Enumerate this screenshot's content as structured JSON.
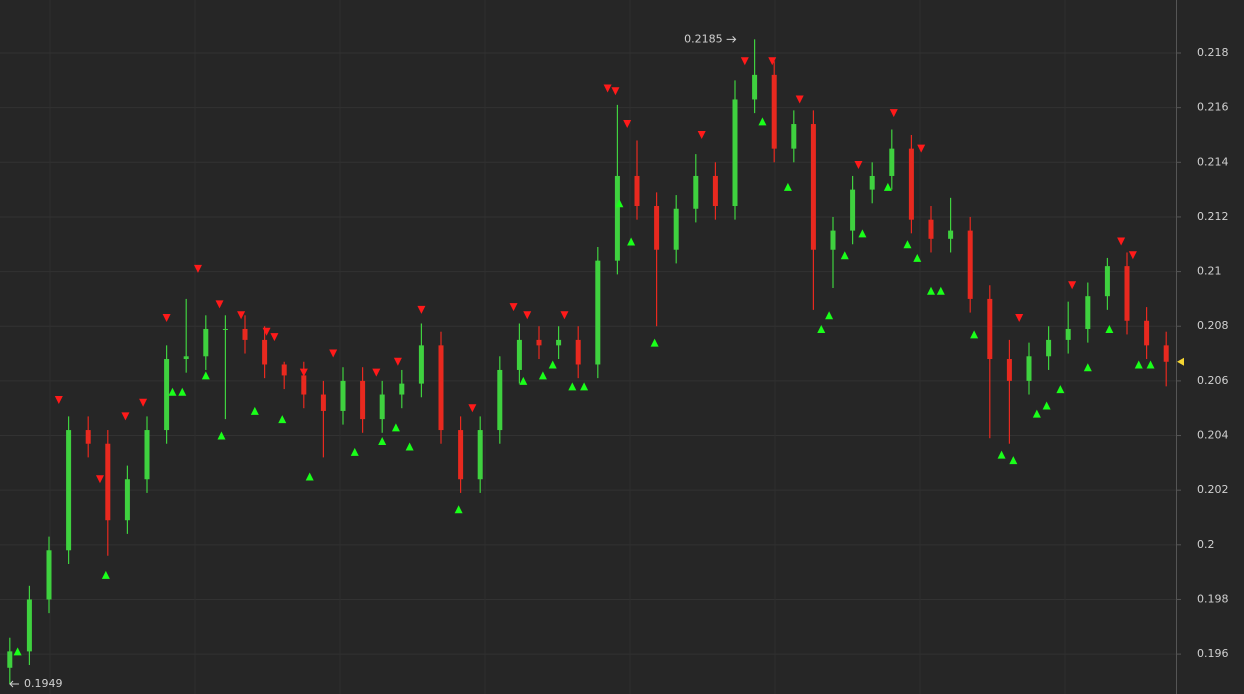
{
  "chart_data": {
    "type": "candlestick",
    "open": [
      0.1955,
      0.1961,
      0.198,
      0.1998,
      0.2042,
      0.2037,
      0.2009,
      0.2024,
      0.2042,
      0.2068,
      0.2069,
      0.2079,
      0.2079,
      0.2075,
      0.2066,
      0.2062,
      0.2055,
      0.2049,
      0.206,
      0.2046,
      0.2055,
      0.2059,
      0.2073,
      0.2042,
      0.2024,
      0.2042,
      0.2064,
      0.2075,
      0.2073,
      0.2075,
      0.2066,
      0.2104,
      0.2135,
      0.2124,
      0.2108,
      0.2123,
      0.2135,
      0.2124,
      0.2163,
      0.2172,
      0.2145,
      0.2154,
      0.2108,
      0.2115,
      0.213,
      0.2135,
      0.2145,
      0.2119,
      0.2112,
      0.2115,
      0.209,
      0.2068,
      0.206,
      0.2069,
      0.2075,
      0.2079,
      0.2091,
      0.2102,
      0.2082,
      0.2073
    ],
    "high": [
      0.1966,
      0.1985,
      0.2003,
      0.2047,
      0.2047,
      0.2042,
      0.2029,
      0.2047,
      0.2073,
      0.209,
      0.2084,
      0.2084,
      0.2084,
      0.208,
      0.2067,
      0.2067,
      0.206,
      0.2065,
      0.2065,
      0.206,
      0.2064,
      0.2081,
      0.2078,
      0.2047,
      0.2047,
      0.2069,
      0.2081,
      0.208,
      0.208,
      0.208,
      0.2109,
      0.2161,
      0.2148,
      0.2129,
      0.2128,
      0.2143,
      0.214,
      0.217,
      0.2185,
      0.2177,
      0.2159,
      0.2159,
      0.212,
      0.2135,
      0.214,
      0.2152,
      0.215,
      0.2124,
      0.2127,
      0.212,
      0.2095,
      0.2075,
      0.2074,
      0.208,
      0.2089,
      0.2096,
      0.2105,
      0.2107,
      0.2087,
      0.2078
    ],
    "low": [
      0.1949,
      0.1956,
      0.1975,
      0.1993,
      0.2032,
      0.1996,
      0.2004,
      0.2019,
      0.2037,
      0.2063,
      0.2064,
      0.2046,
      0.207,
      0.2061,
      0.2057,
      0.205,
      0.2032,
      0.2044,
      0.2041,
      0.2041,
      0.205,
      0.2054,
      0.2037,
      0.2019,
      0.2019,
      0.2037,
      0.2059,
      0.2068,
      0.2068,
      0.2061,
      0.2061,
      0.2099,
      0.2119,
      0.208,
      0.2103,
      0.2118,
      0.2119,
      0.2119,
      0.2158,
      0.214,
      0.214,
      0.2086,
      0.2094,
      0.211,
      0.2125,
      0.213,
      0.2114,
      0.2107,
      0.2107,
      0.2085,
      0.2039,
      0.2037,
      0.2055,
      0.2064,
      0.207,
      0.2074,
      0.2086,
      0.2077,
      0.2068,
      0.2058
    ],
    "close": [
      0.1961,
      0.198,
      0.1998,
      0.2042,
      0.2037,
      0.2009,
      0.2024,
      0.2042,
      0.2068,
      0.2069,
      0.2079,
      0.2079,
      0.2075,
      0.2066,
      0.2062,
      0.2055,
      0.2049,
      0.206,
      0.2046,
      0.2055,
      0.2059,
      0.2073,
      0.2042,
      0.2024,
      0.2042,
      0.2064,
      0.2075,
      0.2073,
      0.2075,
      0.2066,
      0.2104,
      0.2135,
      0.2124,
      0.2108,
      0.2123,
      0.2135,
      0.2124,
      0.2163,
      0.2172,
      0.2145,
      0.2154,
      0.2108,
      0.2115,
      0.213,
      0.2135,
      0.2145,
      0.2119,
      0.2112,
      0.2115,
      0.209,
      0.2068,
      0.206,
      0.2069,
      0.2075,
      0.2079,
      0.2091,
      0.2102,
      0.2082,
      0.2073,
      0.2067
    ],
    "up_color": "#3fd13f",
    "down_color": "#e8291f",
    "last_color": "#f5d633",
    "sell_signals": {
      "color": "#ff1a1a",
      "x": [
        2.5,
        4.6,
        5.9,
        6.8,
        8.0,
        9.6,
        10.7,
        11.8,
        13.1,
        13.5,
        15.0,
        16.5,
        18.7,
        19.8,
        21.0,
        23.6,
        25.7,
        26.4,
        28.3,
        30.5,
        30.9,
        31.5,
        35.3,
        37.5,
        38.9,
        40.3,
        43.3,
        45.1,
        46.5,
        51.5,
        54.2,
        56.7,
        57.3
      ],
      "values": [
        0.2053,
        0.2024,
        0.2047,
        0.2052,
        0.2083,
        0.2101,
        0.2088,
        0.2084,
        0.2078,
        0.2076,
        0.2063,
        0.207,
        0.2063,
        0.2067,
        0.2086,
        0.205,
        0.2087,
        0.2084,
        0.2084,
        0.2167,
        0.2166,
        0.2154,
        0.215,
        0.2177,
        0.2177,
        0.2163,
        0.2139,
        0.2158,
        0.2145,
        0.2083,
        0.2095,
        0.2111,
        0.2106
      ]
    },
    "buy_signals": {
      "color": "#1aff1a",
      "x": [
        0.4,
        4.9,
        8.3,
        8.8,
        10.0,
        10.8,
        12.5,
        13.9,
        15.3,
        17.6,
        19.0,
        19.7,
        20.4,
        22.9,
        26.2,
        27.2,
        27.7,
        28.7,
        29.3,
        31.1,
        31.7,
        32.9,
        38.4,
        39.7,
        41.4,
        41.8,
        42.6,
        43.5,
        44.8,
        45.8,
        46.3,
        47.0,
        47.5,
        49.2,
        50.6,
        51.2,
        52.4,
        52.9,
        53.6,
        55.0,
        56.1,
        57.6,
        58.2
      ],
      "values": [
        0.1961,
        0.1989,
        0.2056,
        0.2056,
        0.2062,
        0.204,
        0.2049,
        0.2046,
        0.2025,
        0.2034,
        0.2038,
        0.2043,
        0.2036,
        0.2013,
        0.206,
        0.2062,
        0.2066,
        0.2058,
        0.2058,
        0.2125,
        0.2111,
        0.2074,
        0.2155,
        0.2131,
        0.2079,
        0.2084,
        0.2106,
        0.2114,
        0.2131,
        0.211,
        0.2105,
        0.2093,
        0.2093,
        0.2077,
        0.2033,
        0.2031,
        0.2048,
        0.2051,
        0.2057,
        0.2065,
        0.2079,
        0.2066,
        0.2066
      ]
    },
    "max_label": 0.2185,
    "min_label": 0.1949,
    "ylim": [
      0.19454,
      0.21994
    ],
    "yticks": [
      0.196,
      0.198,
      0.2,
      0.202,
      0.204,
      0.206,
      0.208,
      0.21,
      0.212,
      0.214,
      0.216,
      0.218
    ],
    "grid": true
  }
}
